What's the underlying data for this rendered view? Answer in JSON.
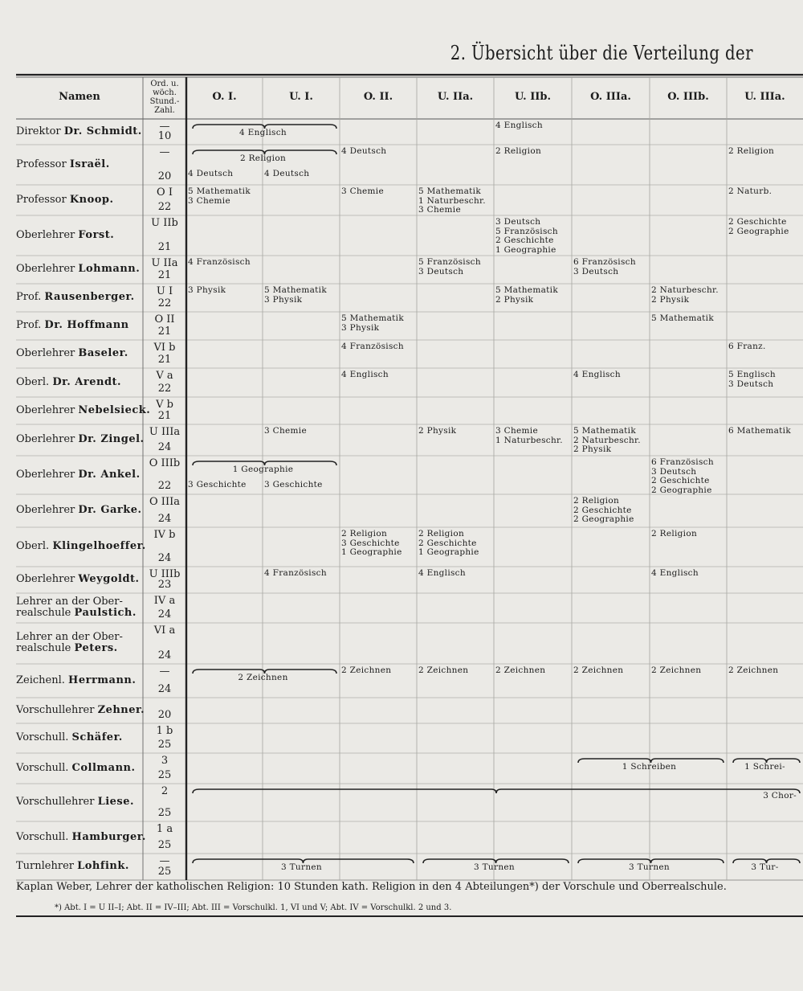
{
  "title": "2. Übersicht über die Verteilung der",
  "header": {
    "name": "Namen",
    "ord": [
      "Ord. u.",
      "wöch.",
      "Stund.-",
      "Zahl."
    ],
    "columns": [
      "O. I.",
      "U. I.",
      "O. II.",
      "U. IIa.",
      "U. IIb.",
      "O. IIIa.",
      "O. IIIb.",
      "U. IIIa."
    ]
  },
  "rows": [
    {
      "title": [
        "Direktor"
      ],
      "name": "Dr. Schmidt.",
      "ord": {
        "class": "—",
        "hours": "10"
      },
      "entries": [
        {
          "col": 0,
          "span": 2,
          "brace": true,
          "lines": [
            "4 Englisch"
          ]
        },
        {
          "col": 4,
          "span": 1,
          "brace": false,
          "lines": [
            "4 Englisch"
          ]
        }
      ]
    },
    {
      "title": [
        "Professor"
      ],
      "name": "Israël.",
      "ord": {
        "class": "—",
        "hours": "20"
      },
      "entries": [
        {
          "col": 0,
          "span": 2,
          "brace": true,
          "lines": [
            "2 Religion"
          ]
        },
        {
          "col": 0,
          "span": 1,
          "brace": false,
          "lines": [
            "4 Deutsch"
          ]
        },
        {
          "col": 1,
          "span": 1,
          "brace": false,
          "lines": [
            "4 Deutsch"
          ]
        },
        {
          "col": 2,
          "span": 1,
          "brace": false,
          "lines": [
            "4 Deutsch"
          ]
        },
        {
          "col": 4,
          "span": 1,
          "brace": false,
          "lines": [
            "2 Religion"
          ]
        },
        {
          "col": 7,
          "span": 1,
          "brace": false,
          "lines": [
            "2 Religion"
          ]
        }
      ]
    },
    {
      "title": [
        "Professor"
      ],
      "name": "Knoop.",
      "ord": {
        "class": "O I",
        "hours": "22"
      },
      "entries": [
        {
          "col": 0,
          "span": 1,
          "brace": false,
          "lines": [
            "5 Mathematik",
            "3 Chemie"
          ]
        },
        {
          "col": 2,
          "span": 1,
          "brace": false,
          "lines": [
            "3 Chemie"
          ]
        },
        {
          "col": 3,
          "span": 1,
          "brace": false,
          "lines": [
            "5 Mathematik",
            "1 Naturbeschr.",
            "3 Chemie"
          ]
        },
        {
          "col": 7,
          "span": 1,
          "brace": false,
          "lines": [
            "2 Naturb."
          ]
        }
      ]
    },
    {
      "title": [
        "Oberlehrer"
      ],
      "name": "Forst.",
      "ord": {
        "class": "U IIb",
        "hours": "21"
      },
      "entries": [
        {
          "col": 4,
          "span": 1,
          "brace": false,
          "lines": [
            "3 Deutsch",
            "5 Französisch",
            "2 Geschichte",
            "1 Geographie"
          ]
        },
        {
          "col": 7,
          "span": 1,
          "brace": false,
          "lines": [
            "2 Geschichte",
            "2 Geographie"
          ]
        }
      ]
    },
    {
      "title": [
        "Oberlehrer"
      ],
      "name": "Lohmann.",
      "ord": {
        "class": "U IIa",
        "hours": "21"
      },
      "entries": [
        {
          "col": 0,
          "span": 1,
          "brace": false,
          "lines": [
            "4 Französisch"
          ]
        },
        {
          "col": 3,
          "span": 1,
          "brace": false,
          "lines": [
            "5 Französisch",
            "3 Deutsch"
          ]
        },
        {
          "col": 5,
          "span": 1,
          "brace": false,
          "lines": [
            "6 Französisch",
            "3 Deutsch"
          ]
        }
      ]
    },
    {
      "title": [
        "Prof."
      ],
      "name": "Rausenberger.",
      "ord": {
        "class": "U I",
        "hours": "22"
      },
      "entries": [
        {
          "col": 0,
          "span": 1,
          "brace": false,
          "lines": [
            "3 Physik"
          ]
        },
        {
          "col": 1,
          "span": 1,
          "brace": false,
          "lines": [
            "5 Mathematik",
            "3 Physik"
          ]
        },
        {
          "col": 4,
          "span": 1,
          "brace": false,
          "lines": [
            "5 Mathematik",
            "2 Physik"
          ]
        },
        {
          "col": 6,
          "span": 1,
          "brace": false,
          "lines": [
            "2 Naturbeschr.",
            "2 Physik"
          ]
        }
      ]
    },
    {
      "title": [
        "Prof."
      ],
      "name": "Dr. Hoffmann",
      "ord": {
        "class": "O II",
        "hours": "21"
      },
      "entries": [
        {
          "col": 2,
          "span": 1,
          "brace": false,
          "lines": [
            "5 Mathematik",
            "3 Physik"
          ]
        },
        {
          "col": 6,
          "span": 1,
          "brace": false,
          "lines": [
            "5 Mathematik"
          ]
        }
      ]
    },
    {
      "title": [
        "Oberlehrer"
      ],
      "name": "Baseler.",
      "ord": {
        "class": "VI b",
        "hours": "21"
      },
      "entries": [
        {
          "col": 2,
          "span": 1,
          "brace": false,
          "lines": [
            "4 Französisch"
          ]
        },
        {
          "col": 7,
          "span": 1,
          "brace": false,
          "lines": [
            "6 Franz."
          ]
        }
      ]
    },
    {
      "title": [
        "Oberl."
      ],
      "name": "Dr. Arendt.",
      "ord": {
        "class": "V a",
        "hours": "22"
      },
      "entries": [
        {
          "col": 2,
          "span": 1,
          "brace": false,
          "lines": [
            "4 Englisch"
          ]
        },
        {
          "col": 5,
          "span": 1,
          "brace": false,
          "lines": [
            "4 Englisch"
          ]
        },
        {
          "col": 7,
          "span": 1,
          "brace": false,
          "lines": [
            "5 Englisch",
            "3 Deutsch"
          ]
        }
      ]
    },
    {
      "title": [
        "Oberlehrer"
      ],
      "name": "Nebelsieck.",
      "ord": {
        "class": "V b",
        "hours": "21"
      },
      "entries": []
    },
    {
      "title": [
        "Oberlehrer"
      ],
      "name": "Dr. Zingel.",
      "ord": {
        "class": "U IIIa",
        "hours": "24"
      },
      "entries": [
        {
          "col": 1,
          "span": 1,
          "brace": false,
          "lines": [
            "3 Chemie"
          ]
        },
        {
          "col": 3,
          "span": 1,
          "brace": false,
          "lines": [
            "2 Physik"
          ]
        },
        {
          "col": 4,
          "span": 1,
          "brace": false,
          "lines": [
            "3 Chemie",
            "1 Naturbeschr."
          ]
        },
        {
          "col": 5,
          "span": 1,
          "brace": false,
          "lines": [
            "5 Mathematik",
            "2 Naturbeschr.",
            "2 Physik"
          ]
        },
        {
          "col": 7,
          "span": 1,
          "brace": false,
          "lines": [
            "6 Mathematik"
          ]
        }
      ]
    },
    {
      "title": [
        "Oberlehrer"
      ],
      "name": "Dr. Ankel.",
      "ord": {
        "class": "O IIIb",
        "hours": "22"
      },
      "entries": [
        {
          "col": 0,
          "span": 2,
          "brace": true,
          "lines": [
            "1 Geographie"
          ]
        },
        {
          "col": 0,
          "span": 1,
          "brace": false,
          "lines": [
            "3 Geschichte"
          ]
        },
        {
          "col": 1,
          "span": 1,
          "brace": false,
          "lines": [
            "3 Geschichte"
          ]
        },
        {
          "col": 6,
          "span": 1,
          "brace": false,
          "lines": [
            "6 Französisch",
            "3 Deutsch",
            "2 Geschichte",
            "2 Geographie"
          ]
        }
      ]
    },
    {
      "title": [
        "Oberlehrer"
      ],
      "name": "Dr. Garke.",
      "ord": {
        "class": "O IIIa",
        "hours": "24"
      },
      "entries": [
        {
          "col": 5,
          "span": 1,
          "brace": false,
          "lines": [
            "2 Religion",
            "2 Geschichte",
            "2 Geographie"
          ]
        }
      ]
    },
    {
      "title": [
        "Oberl."
      ],
      "name": "Klingelhoeffer.",
      "ord": {
        "class": "IV b",
        "hours": "24"
      },
      "entries": [
        {
          "col": 2,
          "span": 1,
          "brace": false,
          "lines": [
            "2 Religion",
            "3 Geschichte",
            "1 Geographie"
          ]
        },
        {
          "col": 3,
          "span": 1,
          "brace": false,
          "lines": [
            "2 Religion",
            "2 Geschichte",
            "1 Geographie"
          ]
        },
        {
          "col": 6,
          "span": 1,
          "brace": false,
          "lines": [
            "2 Religion"
          ]
        }
      ]
    },
    {
      "title": [
        "Oberlehrer"
      ],
      "name": "Weygoldt.",
      "ord": {
        "class": "U IIIb",
        "hours": "23"
      },
      "entries": [
        {
          "col": 1,
          "span": 1,
          "brace": false,
          "lines": [
            "4 Französisch"
          ]
        },
        {
          "col": 3,
          "span": 1,
          "brace": false,
          "lines": [
            "4 Englisch"
          ]
        },
        {
          "col": 6,
          "span": 1,
          "brace": false,
          "lines": [
            "4 Englisch"
          ]
        }
      ]
    },
    {
      "title": [
        "Lehrer an der Ober-",
        "realschule"
      ],
      "name": "Paulstich.",
      "ord": {
        "class": "IV a",
        "hours": "24"
      },
      "entries": []
    },
    {
      "title": [
        "Lehrer an der Ober-",
        "realschule"
      ],
      "name": "Peters.",
      "ord": {
        "class": "VI a",
        "hours": "24"
      },
      "entries": []
    },
    {
      "title": [
        "Zeichenl."
      ],
      "name": "Herrmann.",
      "ord": {
        "class": "—",
        "hours": "24"
      },
      "entries": [
        {
          "col": 0,
          "span": 2,
          "brace": true,
          "lines": [
            "2 Zeichnen"
          ]
        },
        {
          "col": 2,
          "span": 1,
          "brace": false,
          "lines": [
            "2 Zeichnen"
          ]
        },
        {
          "col": 3,
          "span": 1,
          "brace": false,
          "lines": [
            "2 Zeichnen"
          ]
        },
        {
          "col": 4,
          "span": 1,
          "brace": false,
          "lines": [
            "2 Zeichnen"
          ]
        },
        {
          "col": 5,
          "span": 1,
          "brace": false,
          "lines": [
            "2 Zeichnen"
          ]
        },
        {
          "col": 6,
          "span": 1,
          "brace": false,
          "lines": [
            "2 Zeichnen"
          ]
        },
        {
          "col": 7,
          "span": 1,
          "brace": false,
          "lines": [
            "2 Zeichnen"
          ]
        }
      ]
    },
    {
      "title": [
        "Vorschullehrer"
      ],
      "name": "Zehner.",
      "ord": {
        "hours": "20"
      },
      "entries": []
    },
    {
      "title": [
        "Vorschull."
      ],
      "name": "Schäfer.",
      "ord": {
        "class": "1 b",
        "hours": "25"
      },
      "entries": []
    },
    {
      "title": [
        "Vorschull."
      ],
      "name": "Collmann.",
      "ord": {
        "class": "3",
        "hours": "25"
      },
      "entries": [
        {
          "col": 5,
          "span": 2,
          "brace": true,
          "lines": [
            "1 Schreiben"
          ]
        },
        {
          "col": 7,
          "span": 1,
          "brace": true,
          "lines": [
            "1 Schrei-"
          ]
        }
      ]
    },
    {
      "title": [
        "Vorschullehrer"
      ],
      "name": "Liese.",
      "ord": {
        "class": "2",
        "hours": "25"
      },
      "entries": [
        {
          "col": 0,
          "span": 8,
          "brace": true,
          "lines": [
            "3 Chor-"
          ]
        }
      ]
    },
    {
      "title": [
        "Vorschull."
      ],
      "name": "Hamburger.",
      "ord": {
        "class": "1 a",
        "hours": "25"
      },
      "entries": []
    },
    {
      "title": [
        "Turnlehrer"
      ],
      "name": "Lohfink.",
      "ord": {
        "class": "—",
        "hours": "25"
      },
      "entries": [
        {
          "col": 0,
          "span": 3,
          "brace": true,
          "lines": [
            "3 Turnen"
          ]
        },
        {
          "col": 3,
          "span": 2,
          "brace": true,
          "lines": [
            "3 Turnen"
          ]
        },
        {
          "col": 5,
          "span": 2,
          "brace": true,
          "lines": [
            "3 Turnen"
          ]
        },
        {
          "col": 7,
          "span": 1,
          "brace": true,
          "lines": [
            "3 Tur-"
          ]
        }
      ]
    }
  ],
  "footer": {
    "text": "Kaplan Weber, Lehrer der katholischen Religion: 10 Stunden kath. Religion in den 4 Abteilungen*) der Vorschule und Oberrealschule.",
    "note": "*) Abt. I = U II–I; Abt. II = IV–III; Abt. III = Vorschulkl. 1, VI und V; Abt. IV = Vorschulkl. 2 und 3."
  }
}
